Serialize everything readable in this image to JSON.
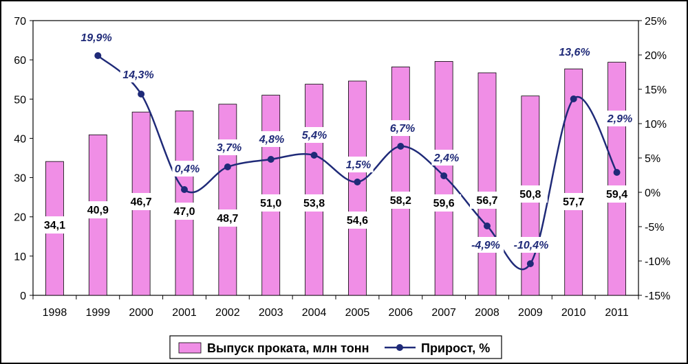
{
  "chart_data": {
    "type": "bar",
    "categories": [
      "1998",
      "1999",
      "2000",
      "2001",
      "2002",
      "2003",
      "2004",
      "2005",
      "2006",
      "2007",
      "2008",
      "2009",
      "2010",
      "2011"
    ],
    "series": [
      {
        "name": "Выпуск проката, млн тонн",
        "type": "bar",
        "axis": "left",
        "values": [
          34.1,
          40.9,
          46.7,
          47.0,
          48.7,
          51.0,
          53.8,
          54.6,
          58.2,
          59.6,
          56.7,
          50.8,
          57.7,
          59.4
        ],
        "labels": [
          "34,1",
          "40,9",
          "46,7",
          "47,0",
          "48,7",
          "51,0",
          "53,8",
          "54,6",
          "58,2",
          "59,6",
          "56,7",
          "50,8",
          "57,7",
          "59,4"
        ],
        "color": "#f08ee6"
      },
      {
        "name": "Прирост, %",
        "type": "line",
        "axis": "right",
        "values": [
          null,
          19.9,
          14.3,
          0.4,
          3.7,
          4.8,
          5.4,
          1.5,
          6.7,
          2.4,
          -4.9,
          -10.4,
          13.6,
          2.9
        ],
        "labels": [
          "",
          "19,9%",
          "14,3%",
          "0,4%",
          "3,7%",
          "4,8%",
          "5,4%",
          "1,5%",
          "6,7%",
          "2,4%",
          "-4,9%",
          "-10,4%",
          "13,6%",
          "2,9%"
        ],
        "color": "#1f2a78"
      }
    ],
    "ylim_left": [
      0,
      70
    ],
    "yticks_left": [
      "0",
      "10",
      "20",
      "30",
      "40",
      "50",
      "60",
      "70"
    ],
    "ylim_right": [
      -15,
      25
    ],
    "yticks_right": [
      "-15%",
      "-10%",
      "-5%",
      "0%",
      "5%",
      "10%",
      "15%",
      "20%",
      "25%"
    ],
    "grid": false,
    "legend": "bottom",
    "title": "",
    "xlabel": "",
    "ylabel": ""
  }
}
